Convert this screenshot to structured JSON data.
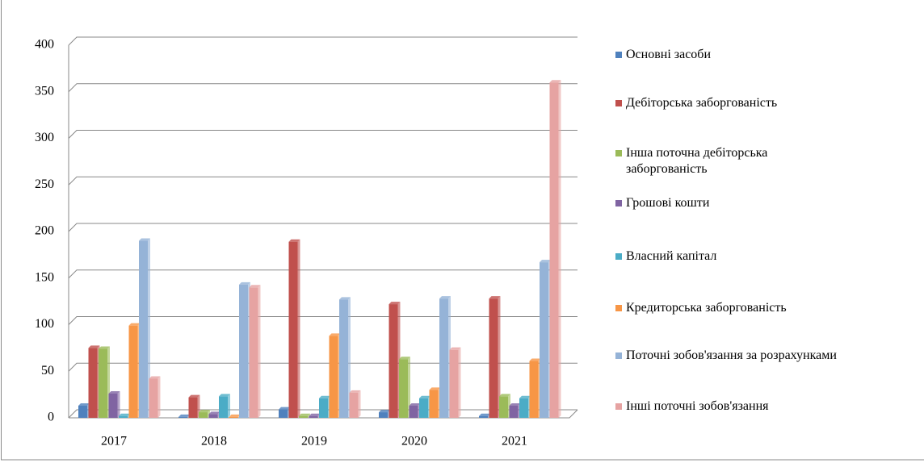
{
  "chart_data": {
    "type": "bar",
    "categories": [
      "2017",
      "2018",
      "2019",
      "2020",
      "2021"
    ],
    "series": [
      {
        "name": "Основні засоби",
        "color": "#4f81bd",
        "values": [
          13,
          1,
          9,
          6,
          2
        ]
      },
      {
        "name": "Дебіторська заборгованість",
        "color": "#c0504d",
        "values": [
          75,
          22,
          189,
          122,
          128
        ]
      },
      {
        "name": "Інша поточна дебіторська заборгованість",
        "color": "#9bbb59",
        "values": [
          74,
          6,
          2,
          63,
          23
        ]
      },
      {
        "name": "Грошові кошти",
        "color": "#8064a2",
        "values": [
          26,
          4,
          2,
          13,
          13
        ]
      },
      {
        "name": "Власний капітал",
        "color": "#4bacc6",
        "values": [
          2,
          23,
          21,
          21,
          21
        ]
      },
      {
        "name": "Кредиторська заборгованість",
        "color": "#f79646",
        "values": [
          99,
          1,
          88,
          30,
          61
        ]
      },
      {
        "name": "Поточні зобов'язання за розрахунками",
        "color": "#95b3d7",
        "values": [
          190,
          143,
          127,
          128,
          167
        ]
      },
      {
        "name": "Інші поточні зобов'язання",
        "color": "#e6a3a2",
        "values": [
          42,
          140,
          27,
          73,
          360
        ]
      }
    ],
    "ylim": [
      0,
      400
    ],
    "yticks": [
      0,
      50,
      100,
      150,
      200,
      250,
      300,
      350,
      400
    ],
    "grid": true,
    "legend": "right"
  }
}
